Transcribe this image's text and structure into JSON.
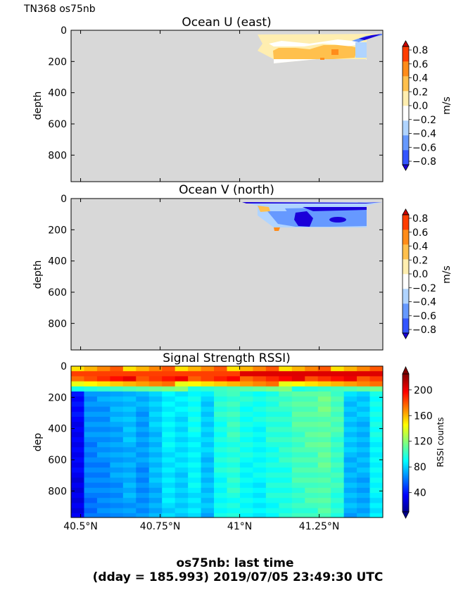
{
  "header": {
    "cruise_label": "TN368 os75nb"
  },
  "footer": {
    "line1": "os75nb: last time",
    "line2": "(dday = 185.993) 2019/07/05 23:49:30 UTC"
  },
  "chart_data": [
    {
      "type": "heatmap",
      "title": "Ocean U (east)",
      "ylabel": "depth",
      "yticks": [
        "0",
        "200",
        "400",
        "600",
        "800"
      ],
      "ytick_values": [
        0,
        200,
        400,
        600,
        800
      ],
      "ylim": [
        970,
        0
      ],
      "xlim": [
        40.47,
        41.45
      ],
      "colorbar": {
        "label": "m/s",
        "ticks": [
          "0.8",
          "0.6",
          "0.4",
          "0.2",
          "0.0",
          "−0.2",
          "−0.4",
          "−0.6",
          "−0.8"
        ],
        "range": [
          -0.8,
          0.8
        ],
        "levels": [
          "#1a00d9",
          "#3355ff",
          "#6699ff",
          "#b0d4ff",
          "#ffffff",
          "#ffeeb0",
          "#ffc04d",
          "#ff8c1a",
          "#ff3d00",
          "#cc0000"
        ]
      },
      "data_region": {
        "lat_range": [
          40.95,
          41.45
        ],
        "depth_range": [
          25,
          200
        ]
      }
    },
    {
      "type": "heatmap",
      "title": "Ocean V (north)",
      "ylabel": "depth",
      "yticks": [
        "0",
        "200",
        "400",
        "600",
        "800"
      ],
      "ytick_values": [
        0,
        200,
        400,
        600,
        800
      ],
      "ylim": [
        970,
        0
      ],
      "xlim": [
        40.47,
        41.45
      ],
      "colorbar": {
        "label": "m/s",
        "ticks": [
          "0.8",
          "0.6",
          "0.4",
          "0.2",
          "0.0",
          "−0.2",
          "−0.4",
          "−0.6",
          "−0.8"
        ],
        "range": [
          -0.8,
          0.8
        ],
        "levels": [
          "#1a00d9",
          "#3355ff",
          "#6699ff",
          "#b0d4ff",
          "#ffffff",
          "#ffeeb0",
          "#ffc04d",
          "#ff8c1a",
          "#ff3d00",
          "#cc0000"
        ]
      },
      "data_region": {
        "lat_range": [
          40.95,
          41.45
        ],
        "depth_range": [
          25,
          200
        ]
      }
    },
    {
      "type": "heatmap",
      "title": "Signal Strength RSSI)",
      "ylabel": "dep",
      "yticks": [
        "0",
        "200",
        "400",
        "600",
        "800"
      ],
      "ytick_values": [
        0,
        200,
        400,
        600,
        800
      ],
      "ylim": [
        970,
        0
      ],
      "xlim": [
        40.47,
        41.45
      ],
      "xticks": [
        "40.5°N",
        "40.75°N",
        "41°N",
        "41.25°N"
      ],
      "xtick_values": [
        40.5,
        40.75,
        41.0,
        41.25
      ],
      "colorbar": {
        "label": "RSSI counts",
        "ticks": [
          "200",
          "160",
          "120",
          "80",
          "40"
        ],
        "tick_values": [
          200,
          160,
          120,
          80,
          40
        ],
        "range": [
          10,
          225
        ]
      },
      "column_profiles": [
        40,
        70,
        72,
        76,
        80,
        74,
        82,
        92,
        88,
        95,
        84,
        100,
        105,
        98,
        96,
        102,
        104,
        110,
        112,
        115,
        108,
        82,
        80,
        96
      ]
    }
  ]
}
